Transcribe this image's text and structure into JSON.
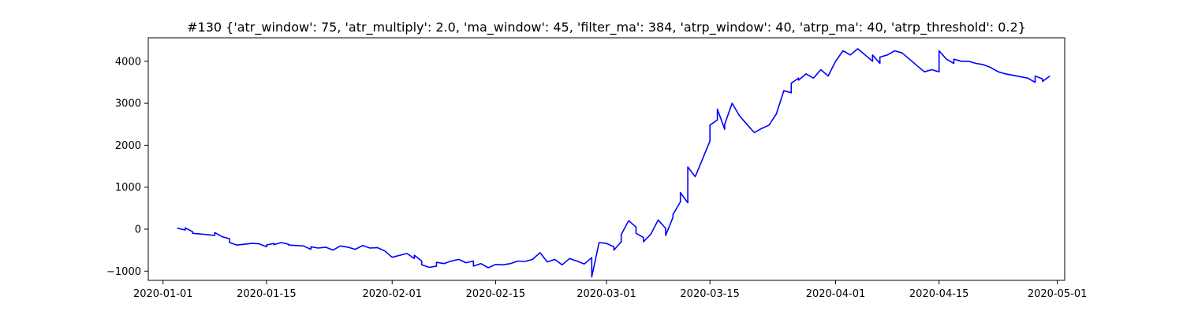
{
  "chart_data": {
    "type": "line",
    "title": "#130 {'atr_window': 75, 'atr_multiply': 2.0, 'ma_window': 45, 'filter_ma': 384, 'atrp_window': 40, 'atrp_ma': 40, 'atrp_threshold': 0.2}",
    "xlabel": "",
    "ylabel": "",
    "x_axis": "date",
    "xlim": [
      "2019-12-30",
      "2020-05-02"
    ],
    "ylim": [
      -1220,
      4560
    ],
    "grid": false,
    "legend": "none",
    "x_ticks": [
      "2020-01-01",
      "2020-01-15",
      "2020-02-01",
      "2020-02-15",
      "2020-03-01",
      "2020-03-15",
      "2020-04-01",
      "2020-04-15",
      "2020-05-01"
    ],
    "y_ticks": [
      -1000,
      0,
      1000,
      2000,
      3000,
      4000
    ],
    "y_tick_labels": [
      "−1000",
      "0",
      "1000",
      "2000",
      "3000",
      "4000"
    ],
    "colors": {
      "line": "#0000ff",
      "axes": "#000000",
      "background": "#ffffff"
    },
    "series": [
      {
        "x": [
          "2020-01-03",
          "2020-01-03",
          "2020-01-04",
          "2020-01-04",
          "2020-01-05",
          "2020-01-05",
          "2020-01-07",
          "2020-01-08",
          "2020-01-08",
          "2020-01-09",
          "2020-01-10",
          "2020-01-10",
          "2020-01-11",
          "2020-01-13",
          "2020-01-14",
          "2020-01-15",
          "2020-01-15",
          "2020-01-16",
          "2020-01-16",
          "2020-01-17",
          "2020-01-18",
          "2020-01-18",
          "2020-01-20",
          "2020-01-21",
          "2020-01-21",
          "2020-01-22",
          "2020-01-23",
          "2020-01-24",
          "2020-01-25",
          "2020-01-26",
          "2020-01-27",
          "2020-01-28",
          "2020-01-29",
          "2020-01-30",
          "2020-01-31",
          "2020-02-01",
          "2020-02-03",
          "2020-02-04",
          "2020-02-04",
          "2020-02-05",
          "2020-02-05",
          "2020-02-06",
          "2020-02-07",
          "2020-02-07",
          "2020-02-08",
          "2020-02-09",
          "2020-02-10",
          "2020-02-11",
          "2020-02-12",
          "2020-02-12",
          "2020-02-13",
          "2020-02-14",
          "2020-02-15",
          "2020-02-16",
          "2020-02-17",
          "2020-02-18",
          "2020-02-19",
          "2020-02-20",
          "2020-02-21",
          "2020-02-22",
          "2020-02-23",
          "2020-02-24",
          "2020-02-25",
          "2020-02-26",
          "2020-02-27",
          "2020-02-28",
          "2020-02-28",
          "2020-02-29",
          "2020-03-01",
          "2020-03-02",
          "2020-03-02",
          "2020-03-03",
          "2020-03-03",
          "2020-03-04",
          "2020-03-05",
          "2020-03-05",
          "2020-03-06",
          "2020-03-06",
          "2020-03-07",
          "2020-03-08",
          "2020-03-09",
          "2020-03-09",
          "2020-03-10",
          "2020-03-10",
          "2020-03-11",
          "2020-03-11",
          "2020-03-12",
          "2020-03-12",
          "2020-03-13",
          "2020-03-15",
          "2020-03-15",
          "2020-03-16",
          "2020-03-16",
          "2020-03-17",
          "2020-03-17",
          "2020-03-18",
          "2020-03-19",
          "2020-03-20",
          "2020-03-21",
          "2020-03-22",
          "2020-03-23",
          "2020-03-24",
          "2020-03-25",
          "2020-03-26",
          "2020-03-26",
          "2020-03-27",
          "2020-03-27",
          "2020-03-28",
          "2020-03-29",
          "2020-03-30",
          "2020-03-31",
          "2020-04-01",
          "2020-04-02",
          "2020-04-03",
          "2020-04-04",
          "2020-04-06",
          "2020-04-06",
          "2020-04-07",
          "2020-04-07",
          "2020-04-08",
          "2020-04-09",
          "2020-04-10",
          "2020-04-12",
          "2020-04-13",
          "2020-04-14",
          "2020-04-15",
          "2020-04-15",
          "2020-04-16",
          "2020-04-17",
          "2020-04-17",
          "2020-04-18",
          "2020-04-19",
          "2020-04-20",
          "2020-04-21",
          "2020-04-22",
          "2020-04-23",
          "2020-04-24",
          "2020-04-27",
          "2020-04-28",
          "2020-04-28",
          "2020-04-29",
          "2020-04-29",
          "2020-04-30"
        ],
        "values": [
          0,
          20,
          -20,
          30,
          -60,
          -100,
          -130,
          -150,
          -80,
          -180,
          -230,
          -320,
          -380,
          -340,
          -350,
          -420,
          -380,
          -340,
          -370,
          -320,
          -360,
          -380,
          -400,
          -480,
          -420,
          -450,
          -430,
          -500,
          -400,
          -430,
          -480,
          -390,
          -450,
          -440,
          -520,
          -670,
          -580,
          -700,
          -620,
          -760,
          -850,
          -910,
          -880,
          -790,
          -820,
          -760,
          -720,
          -800,
          -760,
          -880,
          -820,
          -920,
          -840,
          -850,
          -820,
          -760,
          -770,
          -720,
          -560,
          -780,
          -720,
          -850,
          -700,
          -760,
          -830,
          -680,
          -1140,
          -320,
          -340,
          -420,
          -500,
          -300,
          -130,
          200,
          50,
          -100,
          -200,
          -300,
          -120,
          220,
          20,
          -150,
          280,
          350,
          650,
          870,
          630,
          1480,
          1250,
          2100,
          2480,
          2600,
          2860,
          2380,
          2500,
          3000,
          2700,
          2500,
          2300,
          2400,
          2480,
          2750,
          3300,
          3250,
          3480,
          3600,
          3550,
          3700,
          3600,
          3800,
          3650,
          4000,
          4250,
          4150,
          4300,
          4000,
          4150,
          3950,
          4100,
          4150,
          4250,
          4200,
          3900,
          3750,
          3800,
          3750,
          4250,
          4050,
          3950,
          4050,
          4000,
          4000,
          3950,
          3920,
          3850,
          3750,
          3700,
          3600,
          3500,
          3650,
          3580,
          3520,
          3650
        ]
      }
    ]
  }
}
